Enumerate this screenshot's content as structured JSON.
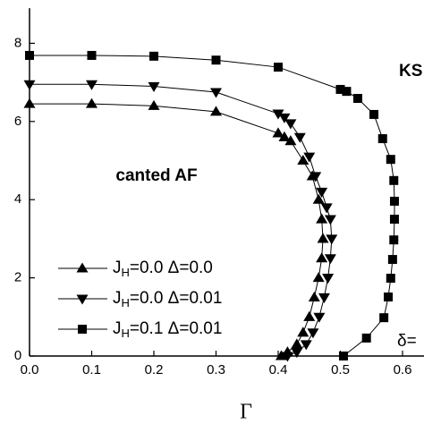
{
  "chart_data": {
    "type": "line",
    "xlabel": "Γ",
    "annotations": [
      "canted AF",
      "KS",
      "δ="
    ],
    "xlim": [
      0,
      0.635
    ],
    "ylim": [
      0,
      8.9
    ],
    "xticks": [
      {
        "value": 0,
        "label": "0.0"
      },
      {
        "value": 0.1,
        "label": "0.1"
      },
      {
        "value": 0.2,
        "label": "0.2"
      },
      {
        "value": 0.3,
        "label": "0.3"
      },
      {
        "value": 0.4,
        "label": "0.4"
      },
      {
        "value": 0.5,
        "label": "0.5"
      },
      {
        "value": 0.6,
        "label": "0.6"
      }
    ],
    "yticks": [
      0,
      2,
      4,
      6,
      8
    ],
    "series": [
      {
        "name": "JH=0.0 Δ=0.0",
        "color": "#000000",
        "marker": "triangle-up",
        "x": [
          0,
          0.1,
          0.2,
          0.3,
          0.4,
          0.41,
          0.42,
          0.44,
          0.455,
          0.465,
          0.47,
          0.472,
          0.47,
          0.465,
          0.458,
          0.45,
          0.44,
          0.43,
          0.415,
          0.405
        ],
        "values": [
          6.45,
          6.45,
          6.4,
          6.25,
          5.7,
          5.6,
          5.5,
          5.0,
          4.6,
          4.0,
          3.5,
          3.0,
          2.5,
          2.0,
          1.5,
          1.0,
          0.6,
          0.3,
          0.1,
          0
        ]
      },
      {
        "name": "JH=0.0 Δ=0.01",
        "color": "#000000",
        "marker": "triangle-down",
        "x": [
          0,
          0.1,
          0.2,
          0.3,
          0.4,
          0.41,
          0.42,
          0.435,
          0.45,
          0.46,
          0.47,
          0.478,
          0.484,
          0.486,
          0.484,
          0.48,
          0.474,
          0.466,
          0.456,
          0.445,
          0.43,
          0.415
        ],
        "values": [
          6.95,
          6.95,
          6.9,
          6.75,
          6.2,
          6.1,
          5.95,
          5.6,
          5.1,
          4.6,
          4.2,
          3.8,
          3.5,
          3.0,
          2.5,
          2.0,
          1.5,
          1.0,
          0.6,
          0.3,
          0.1,
          0
        ]
      },
      {
        "name": "JH=0.1 Δ=0.01",
        "color": "#000000",
        "marker": "square",
        "x": [
          0,
          0.1,
          0.2,
          0.3,
          0.4,
          0.5,
          0.51,
          0.528,
          0.554,
          0.568,
          0.581,
          0.586,
          0.587,
          0.587,
          0.586,
          0.584,
          0.581,
          0.577,
          0.57,
          0.542,
          0.505
        ],
        "values": [
          7.69,
          7.69,
          7.67,
          7.57,
          7.39,
          6.82,
          6.77,
          6.59,
          6.18,
          5.56,
          5.03,
          4.49,
          3.96,
          3.5,
          2.97,
          2.47,
          1.99,
          1.51,
          0.98,
          0.46,
          0
        ]
      }
    ]
  }
}
